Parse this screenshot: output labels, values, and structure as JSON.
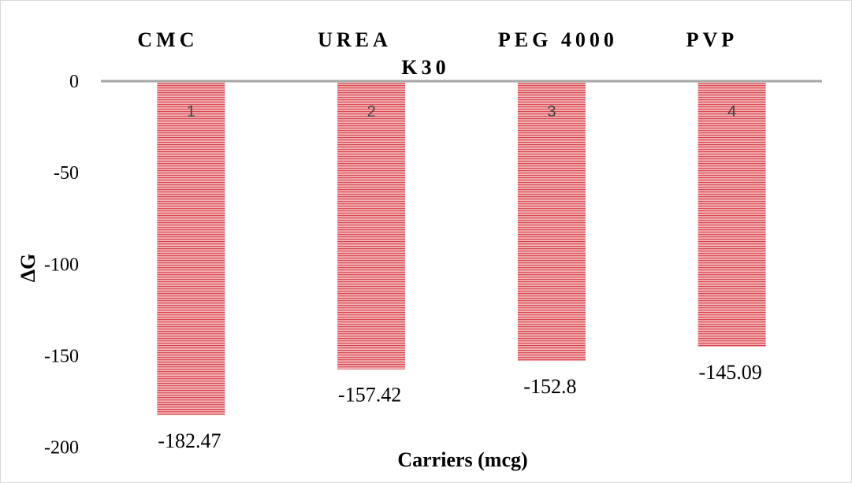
{
  "chart_data": {
    "type": "bar",
    "categories": [
      "CMC",
      "UREA",
      "PEG 4000",
      "PVP"
    ],
    "category_suffix": {
      "3": "K30"
    },
    "values": [
      -182.47,
      -157.42,
      -152.8,
      -145.09
    ],
    "value_labels": [
      "-182.47",
      "-157.42",
      "-152.8",
      "-145.09"
    ],
    "bar_index_labels": [
      "1",
      "2",
      "3",
      "4"
    ],
    "title": "",
    "xlabel": "Carriers (mcg)",
    "ylabel": "ΔG",
    "ylim": [
      -200,
      0
    ],
    "y_ticks": [
      0,
      -50,
      -100,
      -150,
      -200
    ],
    "y_tick_labels": [
      "0",
      "-50",
      "-100",
      "-150",
      "-200"
    ],
    "grid": false,
    "legend": "none",
    "colors": {
      "bar_fill": "#f2b3b6",
      "bar_stripe": "#d9474f",
      "zero_line": "#a6a6a6"
    }
  }
}
